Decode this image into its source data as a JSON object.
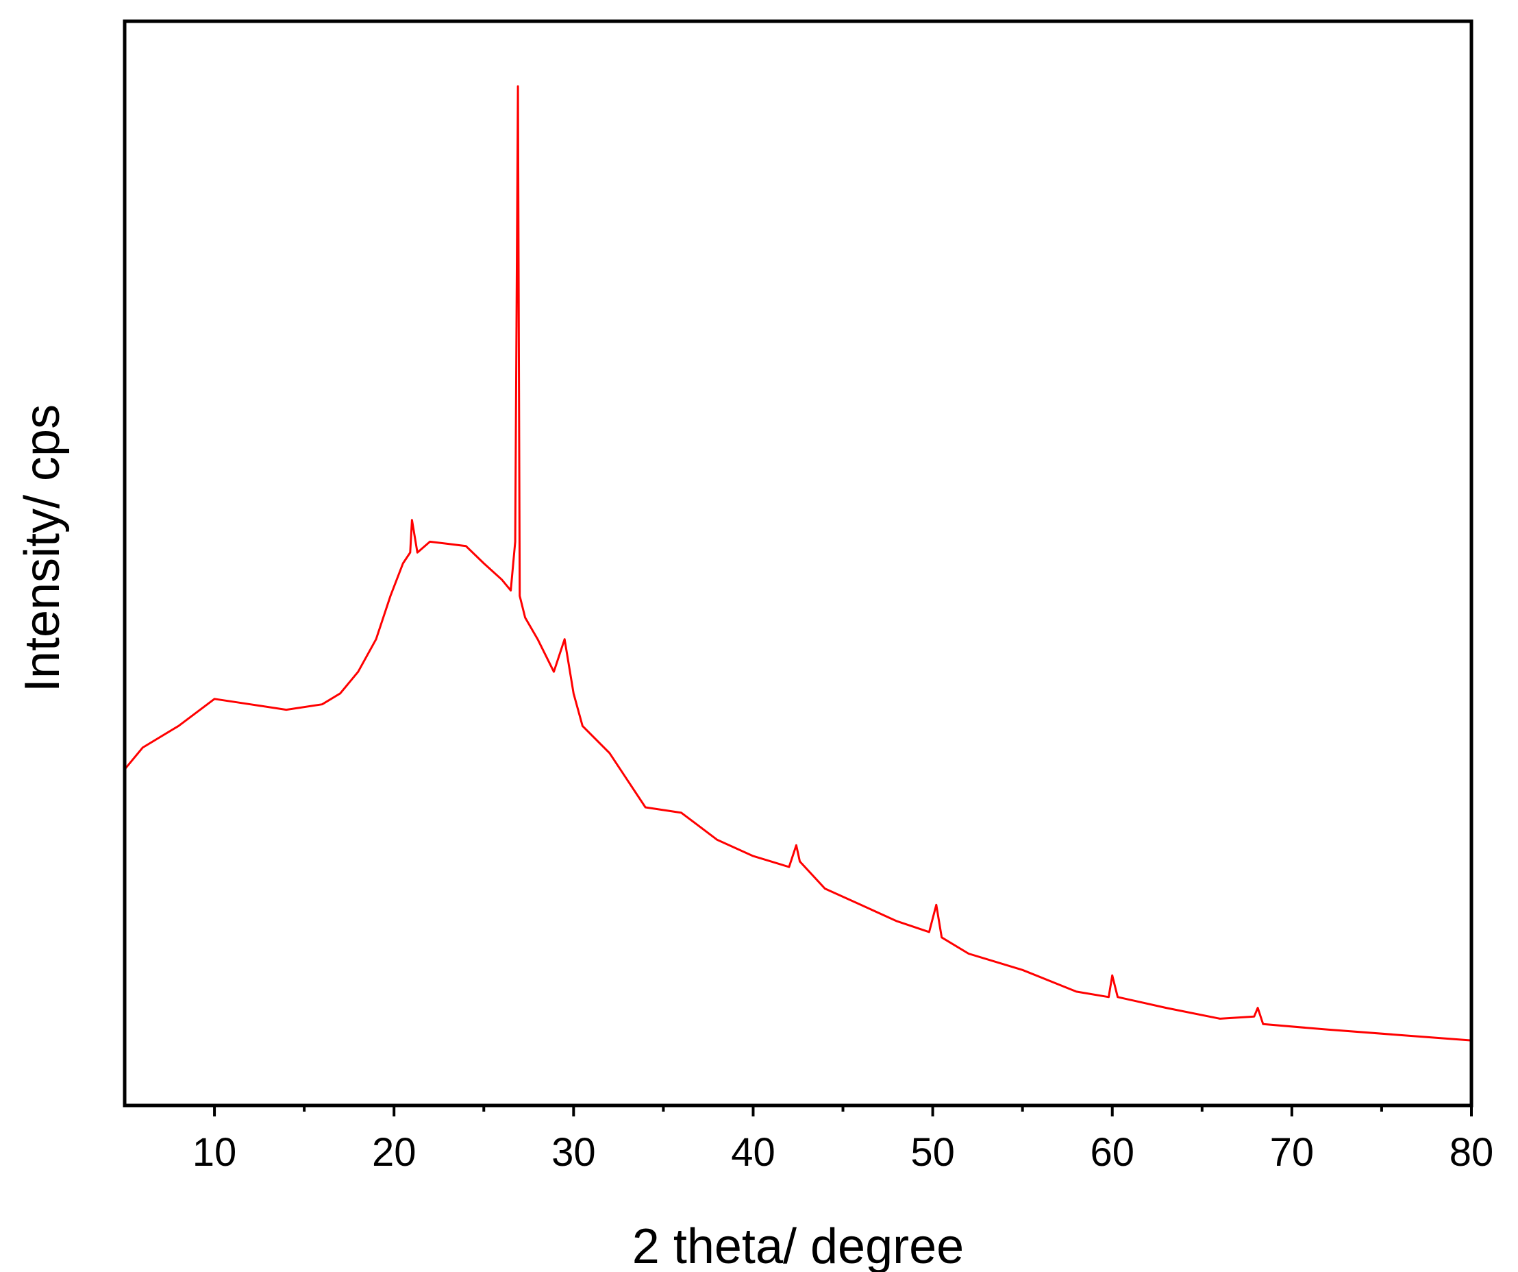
{
  "chart_data": {
    "type": "line",
    "title": "",
    "xlabel": "2 theta/ degree",
    "ylabel": "Intensity/ cps",
    "xlim": [
      5,
      80
    ],
    "ylim": [
      0,
      100
    ],
    "x_ticks": [
      10,
      20,
      30,
      40,
      50,
      60,
      70,
      80
    ],
    "x_minor_ticks": [
      15,
      25,
      35,
      45,
      55,
      65,
      75
    ],
    "y_ticks_shown": false,
    "grid": false,
    "legend": "none",
    "line_color": "#ff0000",
    "series": [
      {
        "x": [
          5,
          6,
          8,
          10,
          12,
          14,
          16,
          17,
          18,
          19,
          19.8,
          20.5,
          20.9,
          21.0,
          21.3,
          22,
          23,
          24,
          25,
          26,
          26.5,
          26.75,
          26.9,
          27.0,
          27.3,
          28,
          28.9,
          29.5,
          30.0,
          30.5,
          32,
          34,
          36,
          38,
          40,
          42,
          42.4,
          42.6,
          44,
          46,
          48,
          49.8,
          50.2,
          50.5,
          52,
          55,
          58,
          59.8,
          60.0,
          60.3,
          63,
          66,
          67.9,
          68.1,
          68.4,
          72,
          76,
          80
        ],
        "y": [
          31,
          33,
          35,
          37.5,
          37,
          36.5,
          37,
          38,
          40,
          43,
          47,
          50,
          51,
          54,
          51,
          52,
          51.8,
          51.6,
          50,
          48.5,
          47.5,
          52,
          94,
          47,
          45,
          43,
          40,
          43,
          38,
          35,
          32.5,
          27.5,
          27,
          24.5,
          23,
          22,
          24,
          22.5,
          20,
          18.5,
          17,
          16,
          18.5,
          15.5,
          14,
          12.5,
          10.5,
          10,
          12,
          10,
          9,
          8,
          8.2,
          9,
          7.5,
          7,
          6.5,
          6
        ]
      }
    ]
  }
}
